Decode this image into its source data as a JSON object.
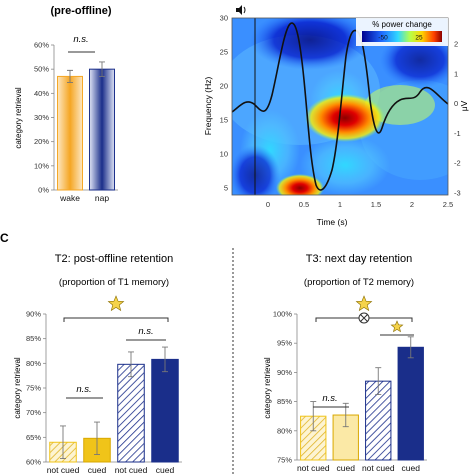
{
  "panel_c_label": "C",
  "colors": {
    "orange": "#f5a623",
    "orange_light": "#fde7c2",
    "navy": "#1a2e8a",
    "navy_light": "#dfe4f5",
    "yellow": "#f0c419",
    "yellow_light": "#fbe9a6",
    "star": "#f5d34a"
  },
  "chart_data": [
    {
      "type": "bar",
      "title": "(pre-offline)",
      "ylabel": "category retrieval",
      "categories": [
        "wake",
        "nap"
      ],
      "values": [
        47,
        50
      ],
      "errors": [
        2.5,
        3
      ],
      "ylim": [
        0,
        60
      ],
      "yticks": [
        "0%",
        "10%",
        "20%",
        "30%",
        "40%",
        "50%",
        "60%"
      ],
      "annotation": "n.s."
    },
    {
      "type": "heatmap",
      "xlabel": "Time (s)",
      "ylabel": "Frequency (Hz)",
      "right_label": "μV",
      "xlim": [
        -0.5,
        2.5
      ],
      "ylim": [
        4,
        30
      ],
      "xticks": [
        "0",
        "0.5",
        "1",
        "1.5",
        "2",
        "2.5"
      ],
      "yticks": [
        "5",
        "10",
        "15",
        "20",
        "25",
        "30"
      ],
      "right_ticks": [
        "2",
        "1",
        "0",
        "-1",
        "-2",
        "-3"
      ],
      "colorbar_title": "% power change",
      "colorbar_ticks": [
        "-50",
        "25"
      ],
      "icon": "speaker-icon"
    },
    {
      "type": "bar",
      "title": "T2: post-offline retention",
      "subtitle": "(proportion of T1 memory)",
      "ylabel": "category retrieval",
      "categories": [
        "not cued",
        "cued",
        "not cued",
        "cued"
      ],
      "values": [
        64,
        64.8,
        79.8,
        80.8
      ],
      "errors": [
        3.3,
        3.3,
        2.5,
        2.5
      ],
      "ylim": [
        60,
        90
      ],
      "yticks": [
        "60%",
        "65%",
        "70%",
        "75%",
        "80%",
        "85%",
        "90%"
      ],
      "annotations": [
        "n.s.",
        "n.s."
      ]
    },
    {
      "type": "bar",
      "title": "T3: next day retention",
      "subtitle": "(proportion of T2 memory)",
      "ylabel": "category retrieval",
      "categories": [
        "not cued",
        "cued",
        "not cued",
        "cued"
      ],
      "values": [
        82.5,
        82.7,
        88.5,
        94.3
      ],
      "errors": [
        2.5,
        2.0,
        2.3,
        1.8
      ],
      "ylim": [
        75,
        100
      ],
      "yticks": [
        "75%",
        "80%",
        "85%",
        "90%",
        "95%",
        "100%"
      ],
      "annotations": [
        "n.s."
      ]
    }
  ]
}
